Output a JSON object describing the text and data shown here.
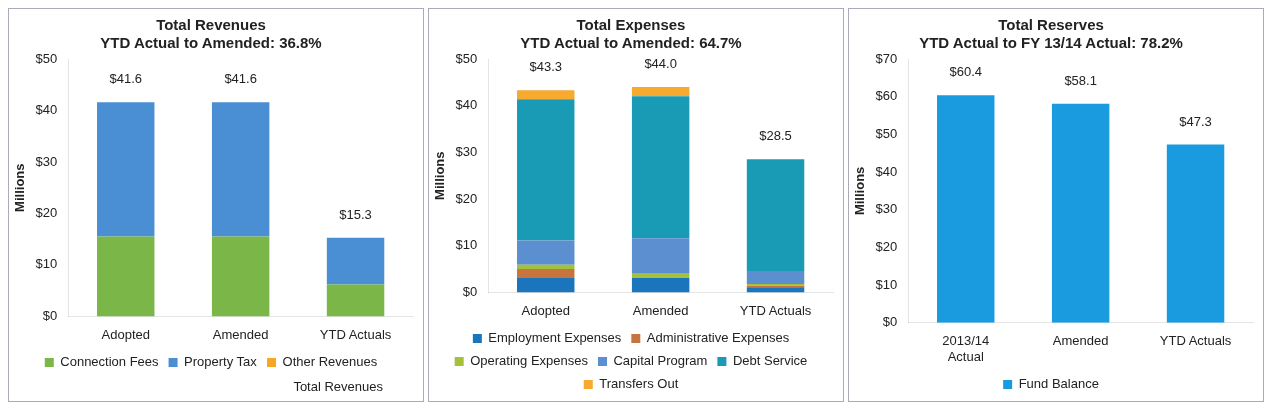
{
  "chart_data": [
    {
      "type": "bar",
      "title": "Total Revenues",
      "subtitle": "YTD Actual to Amended: 36.8%",
      "ylabel": "Millions",
      "categories": [
        "Adopted",
        "Amended",
        "YTD Actuals"
      ],
      "stacked": true,
      "ylim": [
        0,
        50
      ],
      "yticks": [
        {
          "value": 0,
          "label": "$0"
        },
        {
          "value": 10,
          "label": "$10"
        },
        {
          "value": 20,
          "label": "$20"
        },
        {
          "value": 30,
          "label": "$30"
        },
        {
          "value": 40,
          "label": "$40"
        },
        {
          "value": 50,
          "label": "$50"
        }
      ],
      "legend": "bottom",
      "series": [
        {
          "name": "Connection Fees",
          "color": "#7ab648",
          "values": [
            15.5,
            15.5,
            6.2
          ]
        },
        {
          "name": "Property Tax",
          "color": "#4a8fd4",
          "values": [
            26.1,
            26.1,
            9.1
          ]
        },
        {
          "name": "Other Revenues",
          "color": "#f5a623",
          "values": [
            0,
            0,
            0
          ]
        }
      ],
      "totals": [
        "$41.6",
        "$41.6",
        "$15.3"
      ],
      "annotations": [
        "Total Revenues"
      ]
    },
    {
      "type": "bar",
      "title": "Total Expenses",
      "subtitle": "YTD Actual to Amended: 64.7%",
      "ylabel": "Millions",
      "categories": [
        "Adopted",
        "Amended",
        "YTD Actuals"
      ],
      "stacked": true,
      "ylim": [
        0,
        50
      ],
      "yticks": [
        {
          "value": 0,
          "label": "$0"
        },
        {
          "value": 10,
          "label": "$10"
        },
        {
          "value": 20,
          "label": "$20"
        },
        {
          "value": 30,
          "label": "$30"
        },
        {
          "value": 40,
          "label": "$40"
        },
        {
          "value": 50,
          "label": "$50"
        }
      ],
      "legend": "bottom",
      "series": [
        {
          "name": "Employment Expenses",
          "color": "#1a75bc",
          "values": [
            3.1,
            3.1,
            1.1
          ]
        },
        {
          "name": "Administrative Expenses",
          "color": "#c8743f",
          "values": [
            1.9,
            0,
            0.3
          ]
        },
        {
          "name": "Operating Expenses",
          "color": "#a5c03a",
          "values": [
            0.9,
            0.9,
            0.4
          ]
        },
        {
          "name": "Capital Program",
          "color": "#5b8fd0",
          "values": [
            5.2,
            7.6,
            2.8
          ]
        },
        {
          "name": "Debt Service",
          "color": "#1a9bb5",
          "values": [
            30.3,
            30.4,
            23.9
          ]
        },
        {
          "name": "Transfers Out",
          "color": "#f7a930",
          "values": [
            1.9,
            2.0,
            0
          ]
        }
      ],
      "totals": [
        "$43.3",
        "$44.0",
        "$28.5"
      ]
    },
    {
      "type": "bar",
      "title": "Total Reserves",
      "subtitle": "YTD Actual to FY 13/14 Actual: 78.2%",
      "ylabel": "Millions",
      "categories": [
        "2013/14 Actual",
        "Amended",
        "YTD Actuals"
      ],
      "ylim": [
        0,
        70
      ],
      "yticks": [
        {
          "value": 0,
          "label": "$0"
        },
        {
          "value": 10,
          "label": "$10"
        },
        {
          "value": 20,
          "label": "$20"
        },
        {
          "value": 30,
          "label": "$30"
        },
        {
          "value": 40,
          "label": "$40"
        },
        {
          "value": 50,
          "label": "$50"
        },
        {
          "value": 60,
          "label": "$60"
        },
        {
          "value": 70,
          "label": "$70"
        }
      ],
      "legend": "bottom",
      "series": [
        {
          "name": "Fund Balance",
          "color": "#1a9be0",
          "values": [
            60.4,
            58.1,
            47.3
          ],
          "value_labels": [
            "$60.4",
            "$58.1",
            "$47.3"
          ]
        }
      ]
    }
  ]
}
